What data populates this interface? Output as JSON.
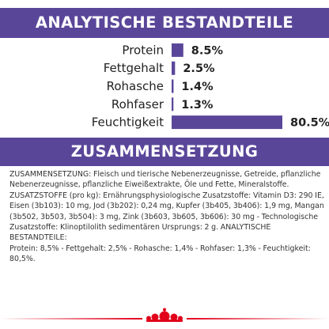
{
  "header": {
    "analysis_title": "ANALYTISCHE BESTANDTEILE",
    "composition_title": "ZUSAMMENSETZUNG"
  },
  "composition": {
    "text": "ZUSAMMENSETZUNG: Fleisch und tierische Nebenerzeugnisse, Getreide, pflanzliche\nNebenerzeugnisse, pflanzliche Eiweißextrakte, Öle und Fette, Mineralstoffe.\nZUSATZSTOFFE (pro kg): Ernährungsphysiologische Zusatzstoffe: Vitamin D3: 290 IE,\nEisen (3b103): 10 mg, Jod (3b202): 0,24 mg, Kupfer (3b405, 3b406): 1,9 mg, Mangan\n(3b502, 3b503, 3b504): 3 mg, Zink (3b603, 3b605, 3b606): 30 mg - Technologische\nZusatzstoffe: Klinoptilolith sedimentären Ursprungs: 2 g. ANALYTISCHE BESTANDTEILE:\nProtein: 8,5% - Fettgehalt: 2,5% - Rohasche: 1,4% - Rohfaser: 1,3% - Feuchtigkeit: 80,5%."
  },
  "colors": {
    "accent": "#5a4699",
    "brand_red": "#e2001a"
  },
  "footer": {
    "logo_icon": "royal-canin-crown-icon"
  },
  "chart_data": {
    "type": "bar",
    "orientation": "horizontal",
    "title": "",
    "xlabel": "",
    "ylabel": "",
    "categories": [
      "Protein",
      "Fettgehalt",
      "Rohasche",
      "Rohfaser",
      "Feuchtigkeit"
    ],
    "values": [
      8.5,
      2.5,
      1.4,
      1.3,
      80.5
    ],
    "value_labels": [
      "8.5%",
      "2.5%",
      "1.4%",
      "1.3%",
      "80.5%"
    ],
    "xlim": [
      0,
      80.5
    ],
    "grid": false,
    "legend": "none"
  }
}
